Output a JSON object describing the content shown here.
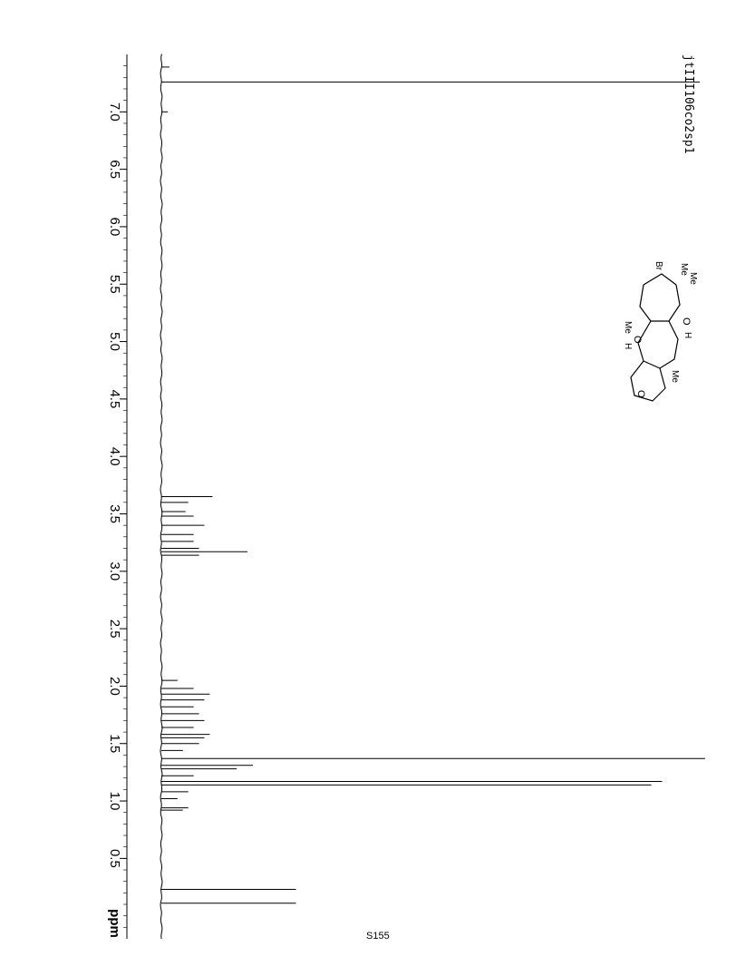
{
  "page": {
    "label": "S155"
  },
  "sample": {
    "id": "jtIII106co2sp1"
  },
  "structure": {
    "labels": [
      "Me",
      "Me",
      "Br",
      "O",
      "H",
      "Me",
      "O",
      "H",
      "Me",
      "O"
    ]
  },
  "chart_data": {
    "type": "line",
    "title": "",
    "xlabel": "ppm",
    "ylabel": "",
    "orientation": "rotated-90",
    "xlim": [
      7.5,
      -0.2
    ],
    "x_ticks": [
      7.0,
      6.5,
      6.0,
      5.5,
      5.0,
      4.5,
      4.0,
      3.5,
      3.0,
      2.5,
      2.0,
      1.5,
      1.0,
      0.5
    ],
    "x_tick_labels": [
      "7.0",
      "6.5",
      "6.0",
      "5.5",
      "5.0",
      "4.5",
      "4.0",
      "3.5",
      "3.0",
      "2.5",
      "2.0",
      "1.5",
      "1.0",
      "0.5"
    ],
    "grid": false,
    "series": [
      {
        "peaks": [
          {
            "ppm": 7.39,
            "intensity": 0.015
          },
          {
            "ppm": 7.26,
            "intensity": 1.0
          },
          {
            "ppm": 7.0,
            "intensity": 0.012
          },
          {
            "ppm": 3.65,
            "intensity": 0.095
          },
          {
            "ppm": 3.6,
            "intensity": 0.05
          },
          {
            "ppm": 3.52,
            "intensity": 0.045
          },
          {
            "ppm": 3.48,
            "intensity": 0.06
          },
          {
            "ppm": 3.4,
            "intensity": 0.08
          },
          {
            "ppm": 3.32,
            "intensity": 0.06
          },
          {
            "ppm": 3.26,
            "intensity": 0.06
          },
          {
            "ppm": 3.2,
            "intensity": 0.07
          },
          {
            "ppm": 3.17,
            "intensity": 0.16
          },
          {
            "ppm": 3.14,
            "intensity": 0.07
          },
          {
            "ppm": 2.05,
            "intensity": 0.03
          },
          {
            "ppm": 1.98,
            "intensity": 0.06
          },
          {
            "ppm": 1.93,
            "intensity": 0.09
          },
          {
            "ppm": 1.88,
            "intensity": 0.08
          },
          {
            "ppm": 1.82,
            "intensity": 0.06
          },
          {
            "ppm": 1.76,
            "intensity": 0.07
          },
          {
            "ppm": 1.7,
            "intensity": 0.08
          },
          {
            "ppm": 1.64,
            "intensity": 0.06
          },
          {
            "ppm": 1.58,
            "intensity": 0.09
          },
          {
            "ppm": 1.55,
            "intensity": 0.08
          },
          {
            "ppm": 1.5,
            "intensity": 0.07
          },
          {
            "ppm": 1.44,
            "intensity": 0.04
          },
          {
            "ppm": 1.37,
            "intensity": 1.01
          },
          {
            "ppm": 1.31,
            "intensity": 0.17
          },
          {
            "ppm": 1.28,
            "intensity": 0.14
          },
          {
            "ppm": 1.22,
            "intensity": 0.06
          },
          {
            "ppm": 1.17,
            "intensity": 0.93
          },
          {
            "ppm": 1.14,
            "intensity": 0.91
          },
          {
            "ppm": 1.08,
            "intensity": 0.05
          },
          {
            "ppm": 1.02,
            "intensity": 0.03
          },
          {
            "ppm": 0.94,
            "intensity": 0.05
          },
          {
            "ppm": 0.92,
            "intensity": 0.04
          },
          {
            "ppm": 0.23,
            "intensity": 0.25
          },
          {
            "ppm": 0.11,
            "intensity": 0.25
          }
        ]
      }
    ]
  }
}
